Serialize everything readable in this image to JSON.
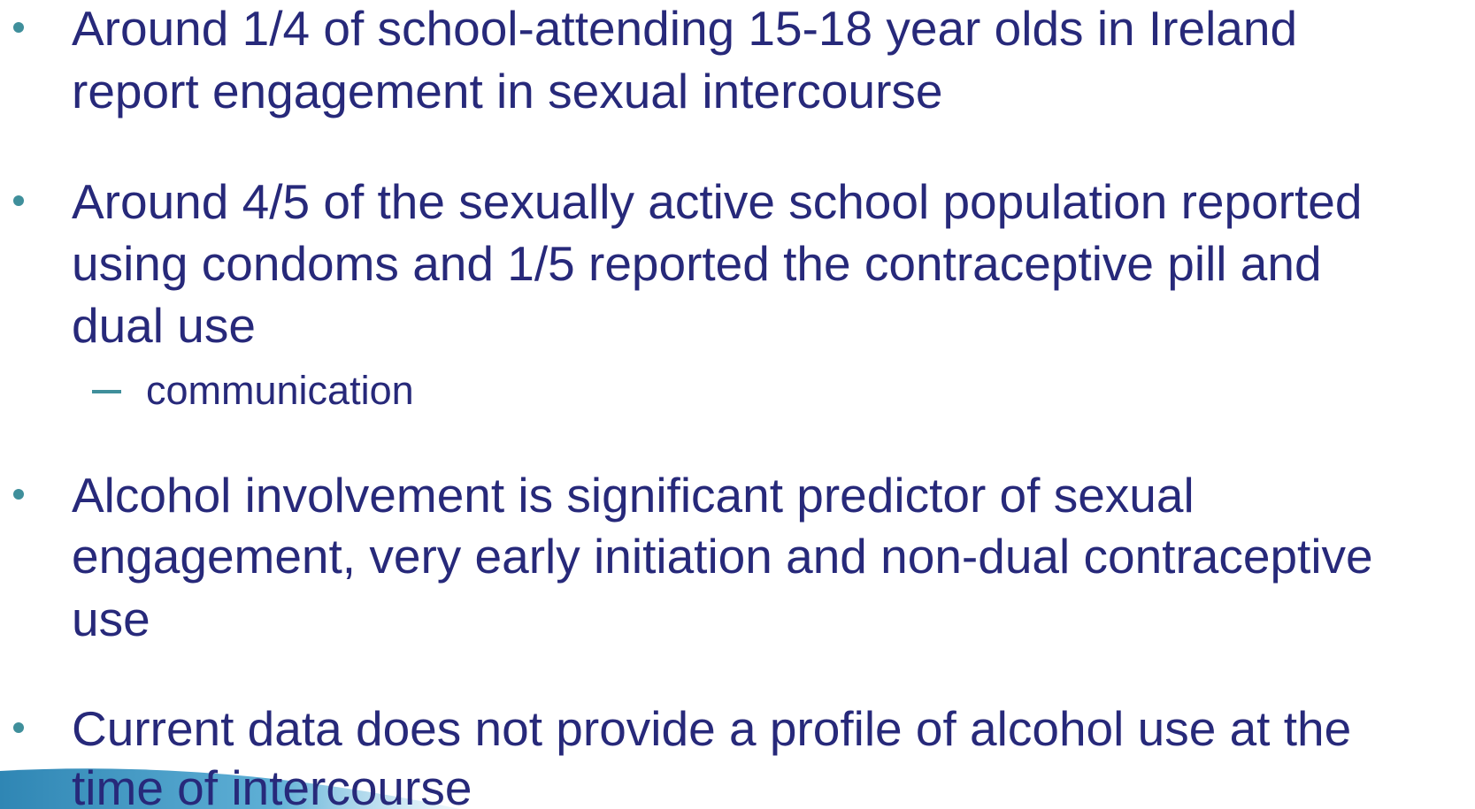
{
  "bullets": [
    {
      "lines": [
        "Around 1/4 of school-attending 15-18 year olds in Ireland",
        "report engagement in sexual intercourse"
      ],
      "sub": []
    },
    {
      "lines": [
        "Around 4/5 of the sexually active school population reported",
        "using condoms and 1/5 reported the contraceptive pill and",
        "dual use"
      ],
      "sub": [
        "communication"
      ]
    },
    {
      "lines": [
        "Alcohol involvement is significant predictor of sexual",
        "engagement, very early initiation and non-dual contraceptive",
        "use"
      ],
      "sub": []
    },
    {
      "lines": [
        "Current data does not provide a profile of alcohol use at the",
        "time of intercourse"
      ],
      "sub": []
    }
  ]
}
